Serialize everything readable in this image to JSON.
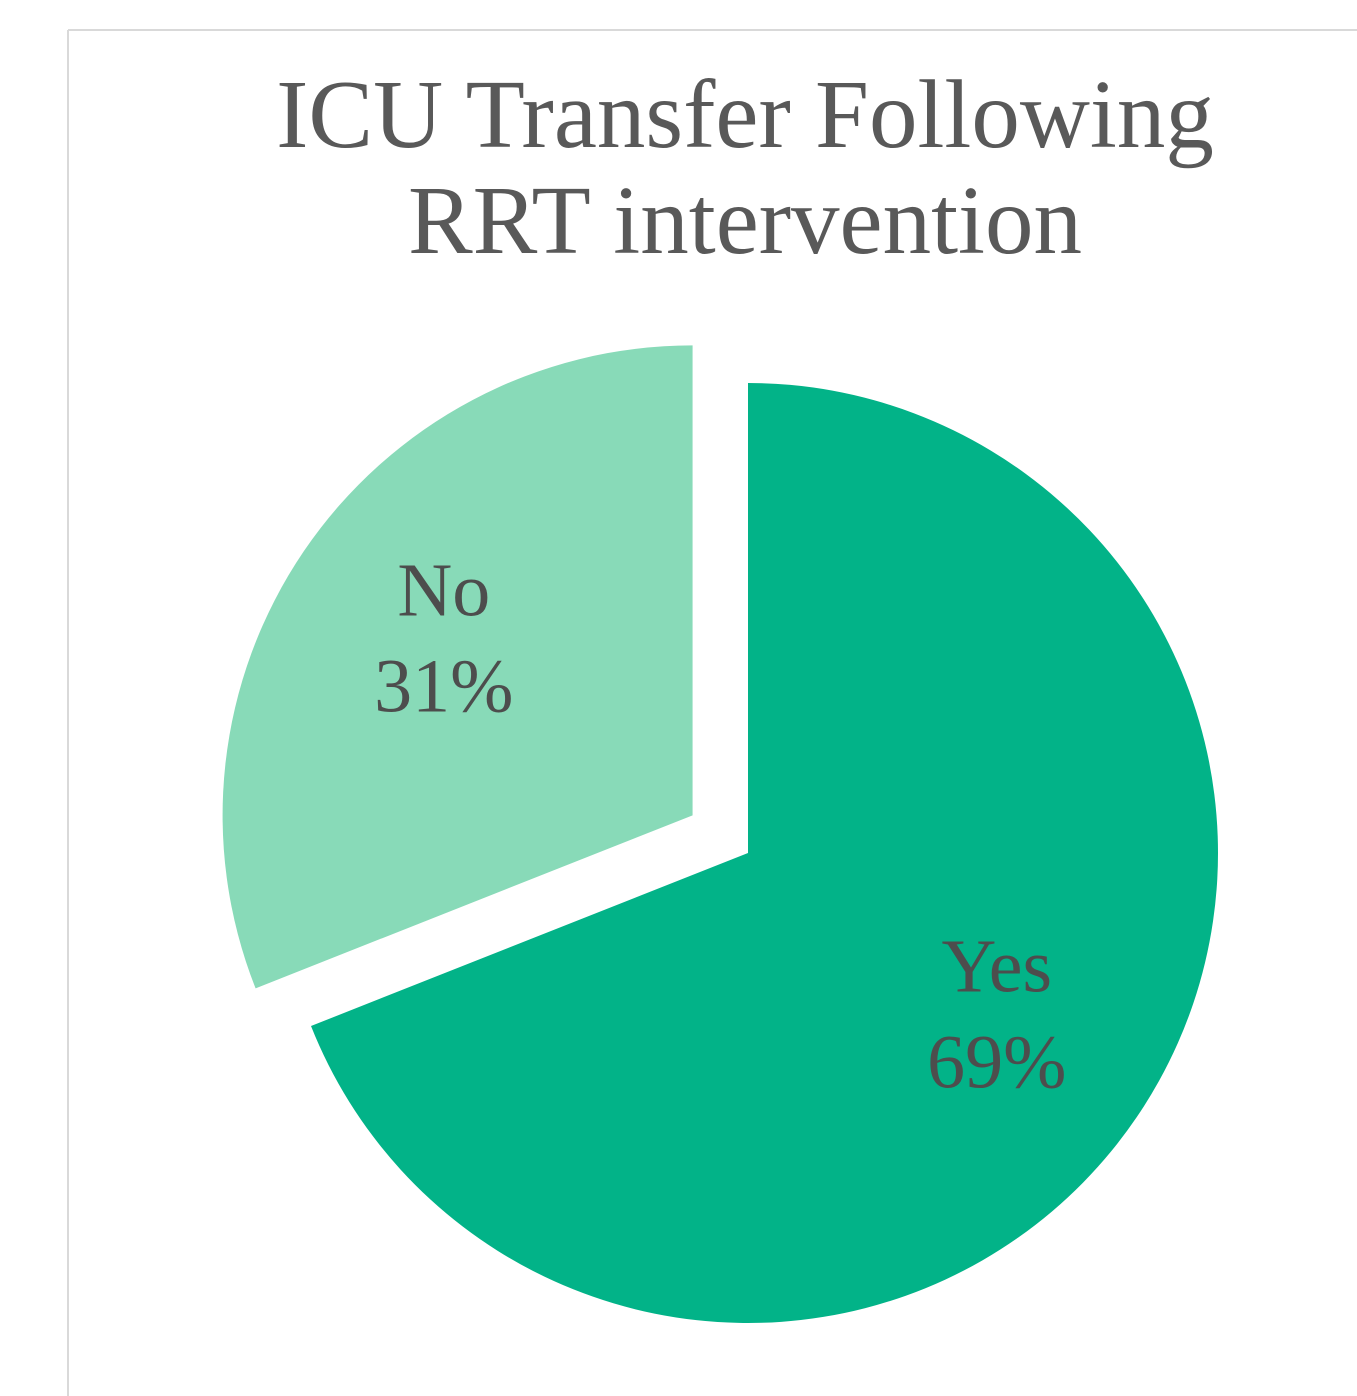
{
  "chart_data": {
    "type": "pie",
    "title": "ICU Transfer Following RRT intervention",
    "categories": [
      "Yes",
      "No"
    ],
    "values": [
      69,
      31
    ],
    "value_labels": [
      "69%",
      "31%"
    ],
    "colors": [
      "#02b388",
      "#88dab8"
    ]
  }
}
